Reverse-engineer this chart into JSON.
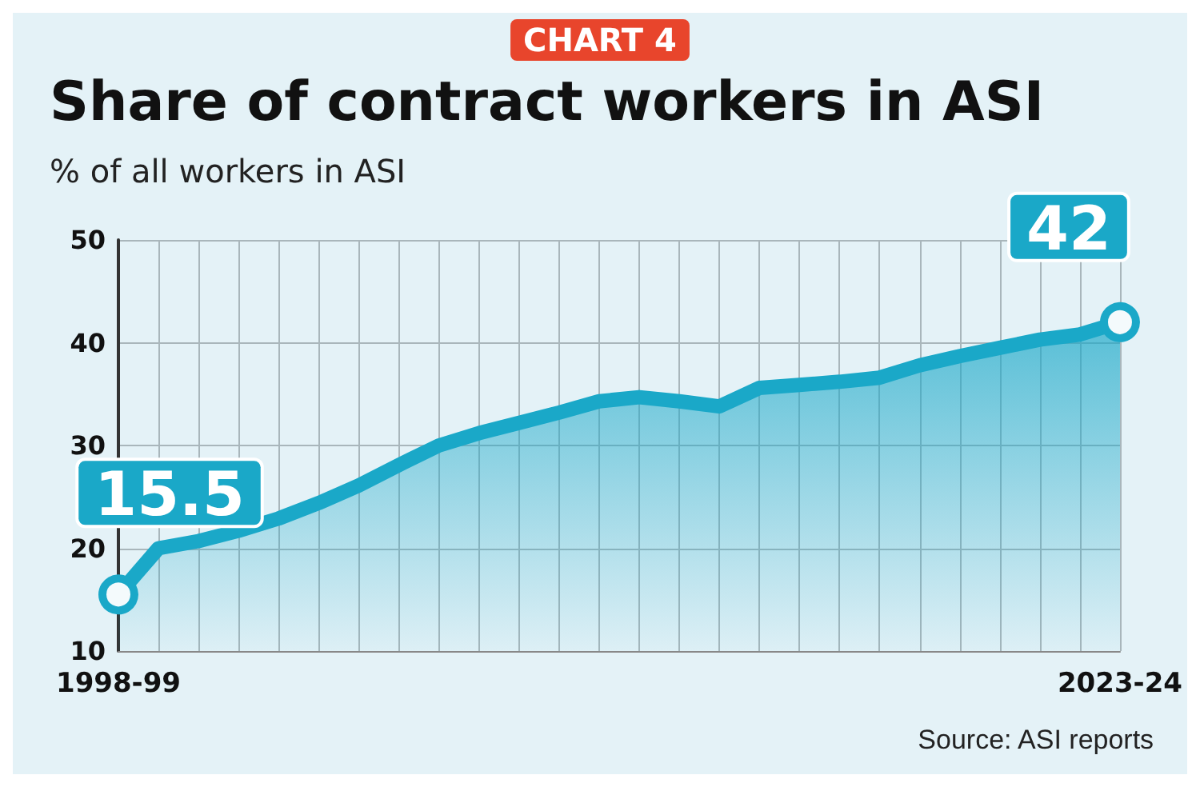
{
  "chart_data": {
    "type": "area",
    "title": "Share of contract workers in ASI",
    "subtitle": "% of all workers in ASI",
    "annotations": [
      "CHART 4",
      "Source: ASI reports"
    ],
    "categories": [
      "1998-99",
      null,
      null,
      null,
      null,
      null,
      null,
      null,
      null,
      null,
      null,
      null,
      null,
      null,
      null,
      null,
      null,
      null,
      null,
      null,
      null,
      null,
      null,
      null,
      null,
      "2023-24"
    ],
    "series": [
      {
        "color": "#1aa8c8",
        "values": [
          15.5,
          20.0,
          20.7,
          21.7,
          22.9,
          24.4,
          26.1,
          28.1,
          30.0,
          31.2,
          32.2,
          33.2,
          34.3,
          34.7,
          34.3,
          33.8,
          35.6,
          35.9,
          36.2,
          36.6,
          37.8,
          38.7,
          39.5,
          40.3,
          40.8,
          42
        ],
        "value_labels": [
          "15.5",
          null,
          null,
          null,
          null,
          null,
          null,
          null,
          null,
          null,
          null,
          null,
          null,
          null,
          null,
          null,
          null,
          null,
          null,
          null,
          null,
          null,
          null,
          null,
          null,
          "42"
        ]
      }
    ],
    "ylim": [
      10,
      50
    ],
    "yticks": [
      10,
      20,
      30,
      40,
      50
    ],
    "grid": true
  }
}
